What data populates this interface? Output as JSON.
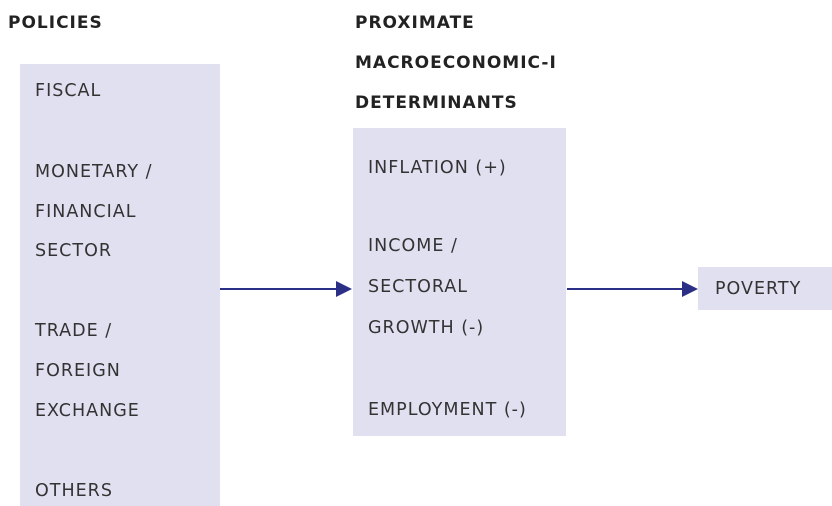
{
  "policies": {
    "title": [
      "POLICIES"
    ],
    "items": [
      [
        "FISCAL"
      ],
      [
        "MONETARY /",
        "FINANCIAL",
        "SECTOR"
      ],
      [
        "TRADE /",
        "FOREIGN",
        "EXCHANGE"
      ],
      [
        "OTHERS"
      ]
    ]
  },
  "determinants": {
    "title": [
      "PROXIMATE",
      "MACROECONOMIC-I",
      "DETERMINANTS"
    ],
    "items": [
      [
        "INFLATION (+)"
      ],
      [
        "INCOME /",
        "SECTORAL",
        "GROWTH (-)"
      ],
      [
        "EMPLOYMENT (-)"
      ]
    ]
  },
  "outcome": {
    "label": "POVERTY"
  }
}
